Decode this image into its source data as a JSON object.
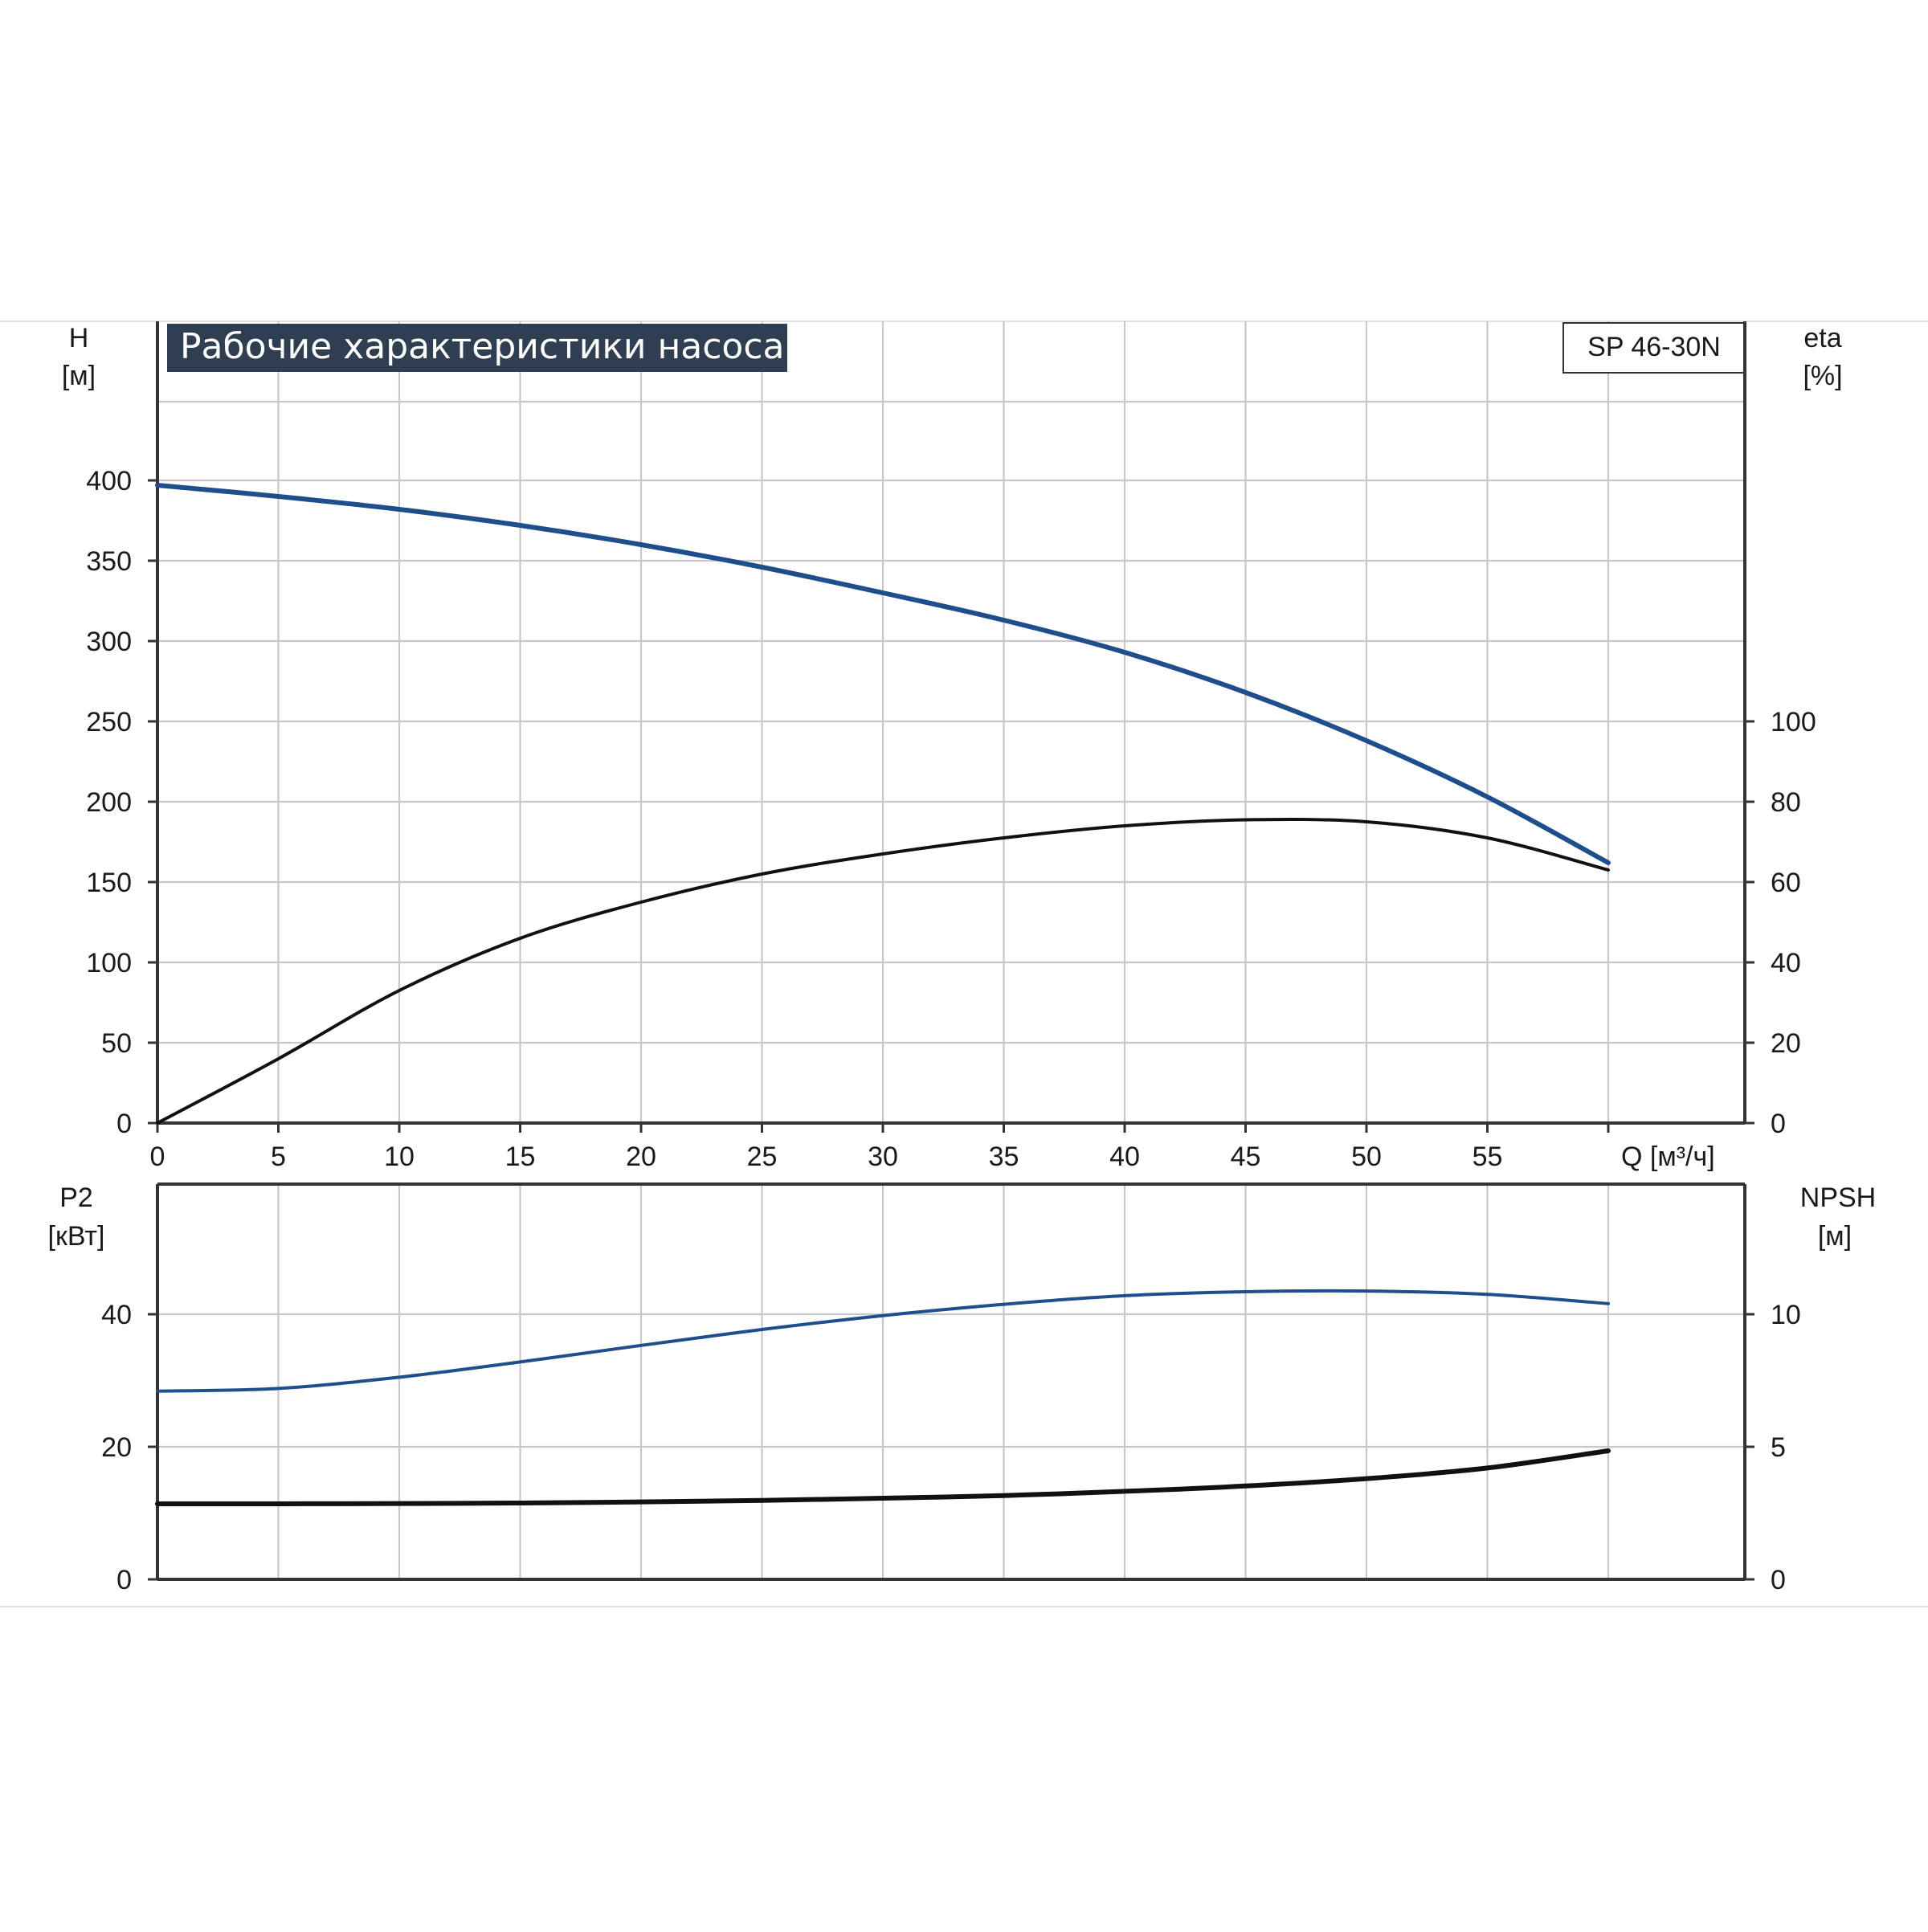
{
  "title": "Рабочие характеристики насоса",
  "model": "SP 46-30N",
  "colors": {
    "blue": "#1f4e8c",
    "black": "#111111",
    "title_bg": "#2f3e50",
    "grid": "#c8c8c8"
  },
  "axes": {
    "h_label": "H",
    "h_unit": "[м]",
    "eta_label": "eta",
    "eta_unit": "[%]",
    "q_label": "Q [м³/ч]",
    "p2_label": "P2",
    "p2_unit": "[кВт]",
    "npsh_label": "NPSH",
    "npsh_unit": "[м]"
  },
  "ticks": {
    "q": [
      "0",
      "5",
      "10",
      "15",
      "20",
      "25",
      "30",
      "35",
      "40",
      "45",
      "50",
      "55"
    ],
    "h": [
      "0",
      "50",
      "100",
      "150",
      "200",
      "250",
      "300",
      "350",
      "400"
    ],
    "eta": [
      "0",
      "20",
      "40",
      "60",
      "80",
      "100"
    ],
    "p2": [
      "0",
      "20",
      "40"
    ],
    "npsh": [
      "0",
      "5",
      "10"
    ]
  },
  "chart_data": [
    {
      "type": "line",
      "title": "Рабочие характеристики насоса",
      "xlabel": "Q [м³/ч]",
      "ylabel": "H [м]",
      "y2label": "eta [%]",
      "xlim": [
        0,
        65
      ],
      "ylim": [
        0,
        480
      ],
      "y2lim": [
        0,
        100
      ],
      "grid": true,
      "series": [
        {
          "axis": "left",
          "color": "#1f4e8c",
          "x": [
            0,
            5,
            10,
            15,
            20,
            25,
            30,
            35,
            40,
            45,
            50,
            55,
            60
          ],
          "y": [
            397,
            390,
            382,
            372,
            360,
            346,
            330,
            313,
            293,
            268,
            238,
            203,
            162
          ]
        },
        {
          "axis": "right",
          "color": "#111111",
          "x": [
            0,
            5,
            10,
            15,
            20,
            25,
            30,
            35,
            40,
            45,
            50,
            55,
            60
          ],
          "y": [
            0,
            16,
            33,
            46,
            55,
            62,
            67,
            71,
            74,
            75.5,
            75,
            71,
            63
          ]
        }
      ]
    },
    {
      "type": "line",
      "xlabel": "Q [м³/ч]",
      "ylabel": "P2 [кВт]",
      "y2label": "NPSH [м]",
      "xlim": [
        0,
        65
      ],
      "ylim": [
        0,
        60
      ],
      "y2lim": [
        0,
        15
      ],
      "grid": true,
      "series": [
        {
          "axis": "left",
          "color": "#1f4e8c",
          "x": [
            0,
            5,
            10,
            15,
            20,
            25,
            30,
            35,
            40,
            45,
            50,
            55,
            60
          ],
          "y": [
            28.4,
            28.8,
            30.5,
            32.8,
            35.3,
            37.7,
            39.8,
            41.5,
            42.8,
            43.4,
            43.5,
            43.0,
            41.6
          ]
        },
        {
          "axis": "right",
          "color": "#111111",
          "x": [
            0,
            5,
            10,
            15,
            20,
            25,
            30,
            35,
            40,
            45,
            50,
            55,
            60
          ],
          "y": [
            2.85,
            2.85,
            2.86,
            2.88,
            2.92,
            2.98,
            3.06,
            3.16,
            3.32,
            3.52,
            3.8,
            4.2,
            4.85
          ]
        }
      ]
    }
  ]
}
